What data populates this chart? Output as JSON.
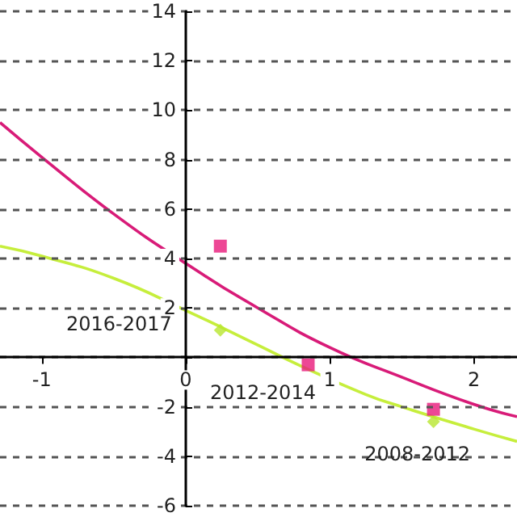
{
  "chart_data": {
    "type": "line",
    "xlim": [
      -1.29,
      2.3
    ],
    "xticks": [
      -1,
      0,
      1,
      2
    ],
    "ylim": [
      -6,
      14
    ],
    "yticks": [
      -6,
      -4,
      -2,
      {
        "value": 0,
        "label": null
      },
      2,
      4,
      6,
      8,
      10,
      12,
      14
    ],
    "grid": "y",
    "series": [
      {
        "color": "#d81b78",
        "marker": "none",
        "x": [
          -1.29,
          -1,
          -0.5,
          0,
          0.5,
          1,
          1.5,
          2,
          2.3
        ],
        "values": [
          9.5,
          8.1,
          5.8,
          3.8,
          2.0,
          0.4,
          -0.8,
          -1.9,
          -2.4
        ]
      },
      {
        "color": "#c6ee3c",
        "marker": "none",
        "x": [
          -1.29,
          -1,
          -0.5,
          0,
          0.5,
          0.8,
          1.25,
          1.5,
          2,
          2.3
        ],
        "values": [
          4.5,
          4.1,
          3.2,
          1.9,
          0.5,
          -0.35,
          -1.5,
          -2.0,
          -2.9,
          -3.4
        ]
      },
      {
        "type": "scatter",
        "color": "#b8e62e",
        "marker": "diamond",
        "x": [
          0.24,
          0.85,
          1.72
        ],
        "values": [
          1.1,
          null,
          -2.6
        ]
      },
      {
        "type": "scatter",
        "color": "#e8197a",
        "marker": "square",
        "x": [
          0.24,
          0.85,
          1.72
        ],
        "values": [
          4.5,
          -0.3,
          -2.1
        ]
      }
    ],
    "annotations": [
      {
        "text": "2016-2017",
        "x": 0.24,
        "y": 1.1
      },
      {
        "text": "2012-2014",
        "x": 0.85,
        "y": -0.3
      },
      {
        "text": "2008-2012",
        "x": 1.72,
        "y": -2.6
      }
    ]
  }
}
